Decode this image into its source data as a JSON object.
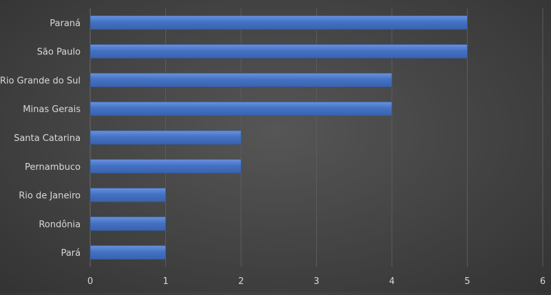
{
  "chart_data": {
    "type": "bar",
    "orientation": "horizontal",
    "categories": [
      "Paraná",
      "São Paulo",
      "Rio Grande do Sul",
      "Minas Gerais",
      "Santa Catarina",
      "Pernambuco",
      "Rio de Janeiro",
      "Rondônia",
      "Pará"
    ],
    "values": [
      5,
      5,
      4,
      4,
      2,
      2,
      1,
      1,
      1
    ],
    "xlim": [
      0,
      6
    ],
    "xticks": [
      "0",
      "1",
      "2",
      "3",
      "4",
      "5",
      "6"
    ],
    "title": "",
    "xlabel": "",
    "ylabel": "",
    "grid": true,
    "legend": "none",
    "colors": {
      "bar_fill": "#4472c4",
      "bar_highlight": "#6a92dc",
      "gridline": "#5c5c5c",
      "text": "#d9d9d9"
    }
  }
}
